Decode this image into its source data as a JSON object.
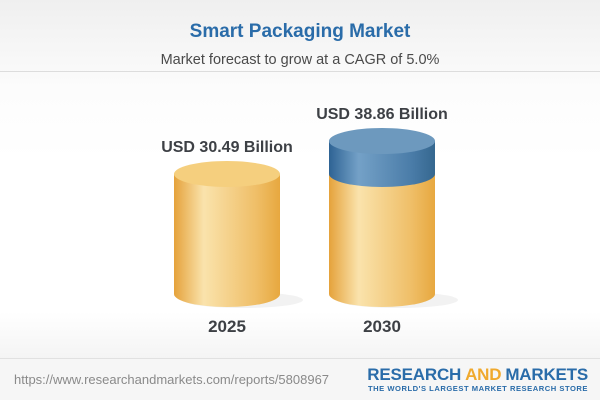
{
  "header": {
    "title": "Smart Packaging Market",
    "subtitle": "Market forecast to grow at a CAGR of 5.0%"
  },
  "chart_data": {
    "type": "bar",
    "subtype": "3d-cylinder",
    "title": "Smart Packaging Market",
    "subtitle": "Market forecast to grow at a CAGR of 5.0%",
    "cagr": "5.0%",
    "unit": "USD Billion",
    "categories": [
      "2025",
      "2030"
    ],
    "values": [
      30.49,
      38.86
    ],
    "value_labels": [
      "USD 30.49 Billion",
      "USD 38.86 Billion"
    ],
    "legend": "none",
    "note": "2030 bar shows growth increment above 2025 base as blue top segment",
    "colors": {
      "base_edge": "#E5A23B",
      "base_highlight": "#FAE3AC",
      "base_mid": "#EFBE67",
      "base_edge_right": "#E7A83F",
      "base_top": "#F5CF7E",
      "growth_edge": "#2E6394",
      "growth_highlight": "#74A1C7",
      "growth_mid": "#4A7CA8",
      "growth_edge_right": "#35678F",
      "growth_top": "#6D99BE",
      "label_text": "#3D4045"
    }
  },
  "footer": {
    "url": "https://www.researchandmarkets.com/reports/5808967",
    "logo": {
      "word1": "RESEARCH",
      "word2": "AND",
      "word3": "MARKETS",
      "tagline": "THE WORLD'S LARGEST MARKET RESEARCH STORE"
    }
  },
  "theme": {
    "title_blue": "#2A6CA9",
    "logo_orange": "#F0A92D"
  }
}
